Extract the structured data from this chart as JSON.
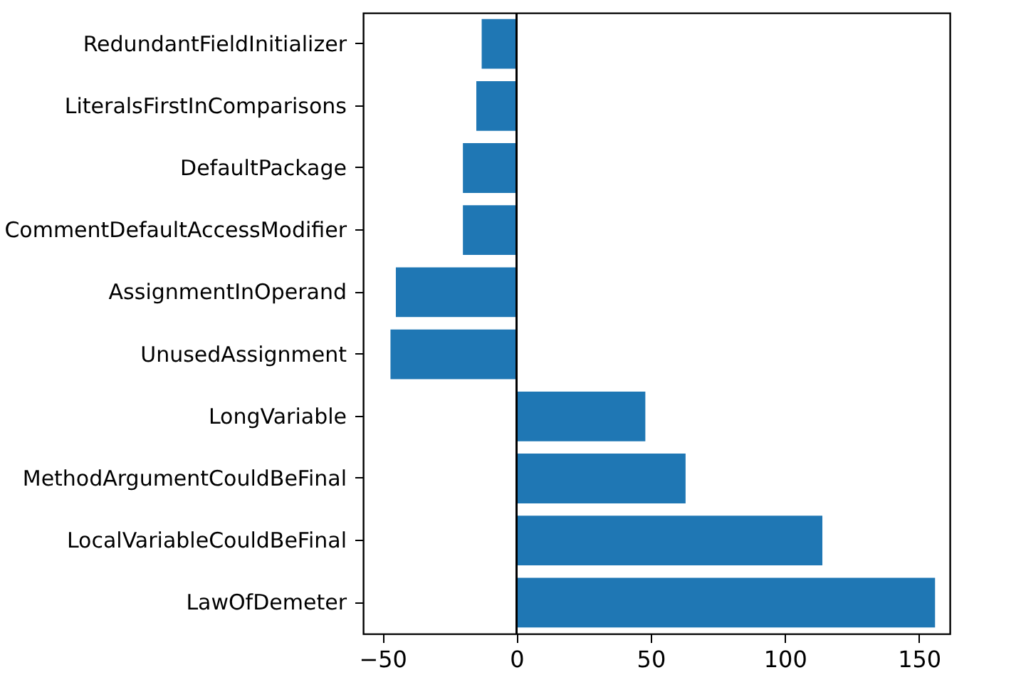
{
  "chart_data": {
    "type": "bar",
    "orientation": "horizontal",
    "categories": [
      "RedundantFieldInitializer",
      "LiteralsFirstInComparisons",
      "DefaultPackage",
      "CommentDefaultAccessModifier",
      "AssignmentInOperand",
      "UnusedAssignment",
      "LongVariable",
      "MethodArgumentCouldBeFinal",
      "LocalVariableCouldBeFinal",
      "LawOfDemeter"
    ],
    "values": [
      -13,
      -15,
      -20,
      -20,
      -45,
      -47,
      48,
      63,
      114,
      156
    ],
    "color": "#1f77b4",
    "xlim": [
      -57.2,
      161.5
    ],
    "xticks": [
      -50,
      0,
      50,
      100,
      150
    ],
    "ref_lines": [
      {
        "axis": "x",
        "value": 0,
        "color": "#000000"
      }
    ],
    "grid": false
  }
}
